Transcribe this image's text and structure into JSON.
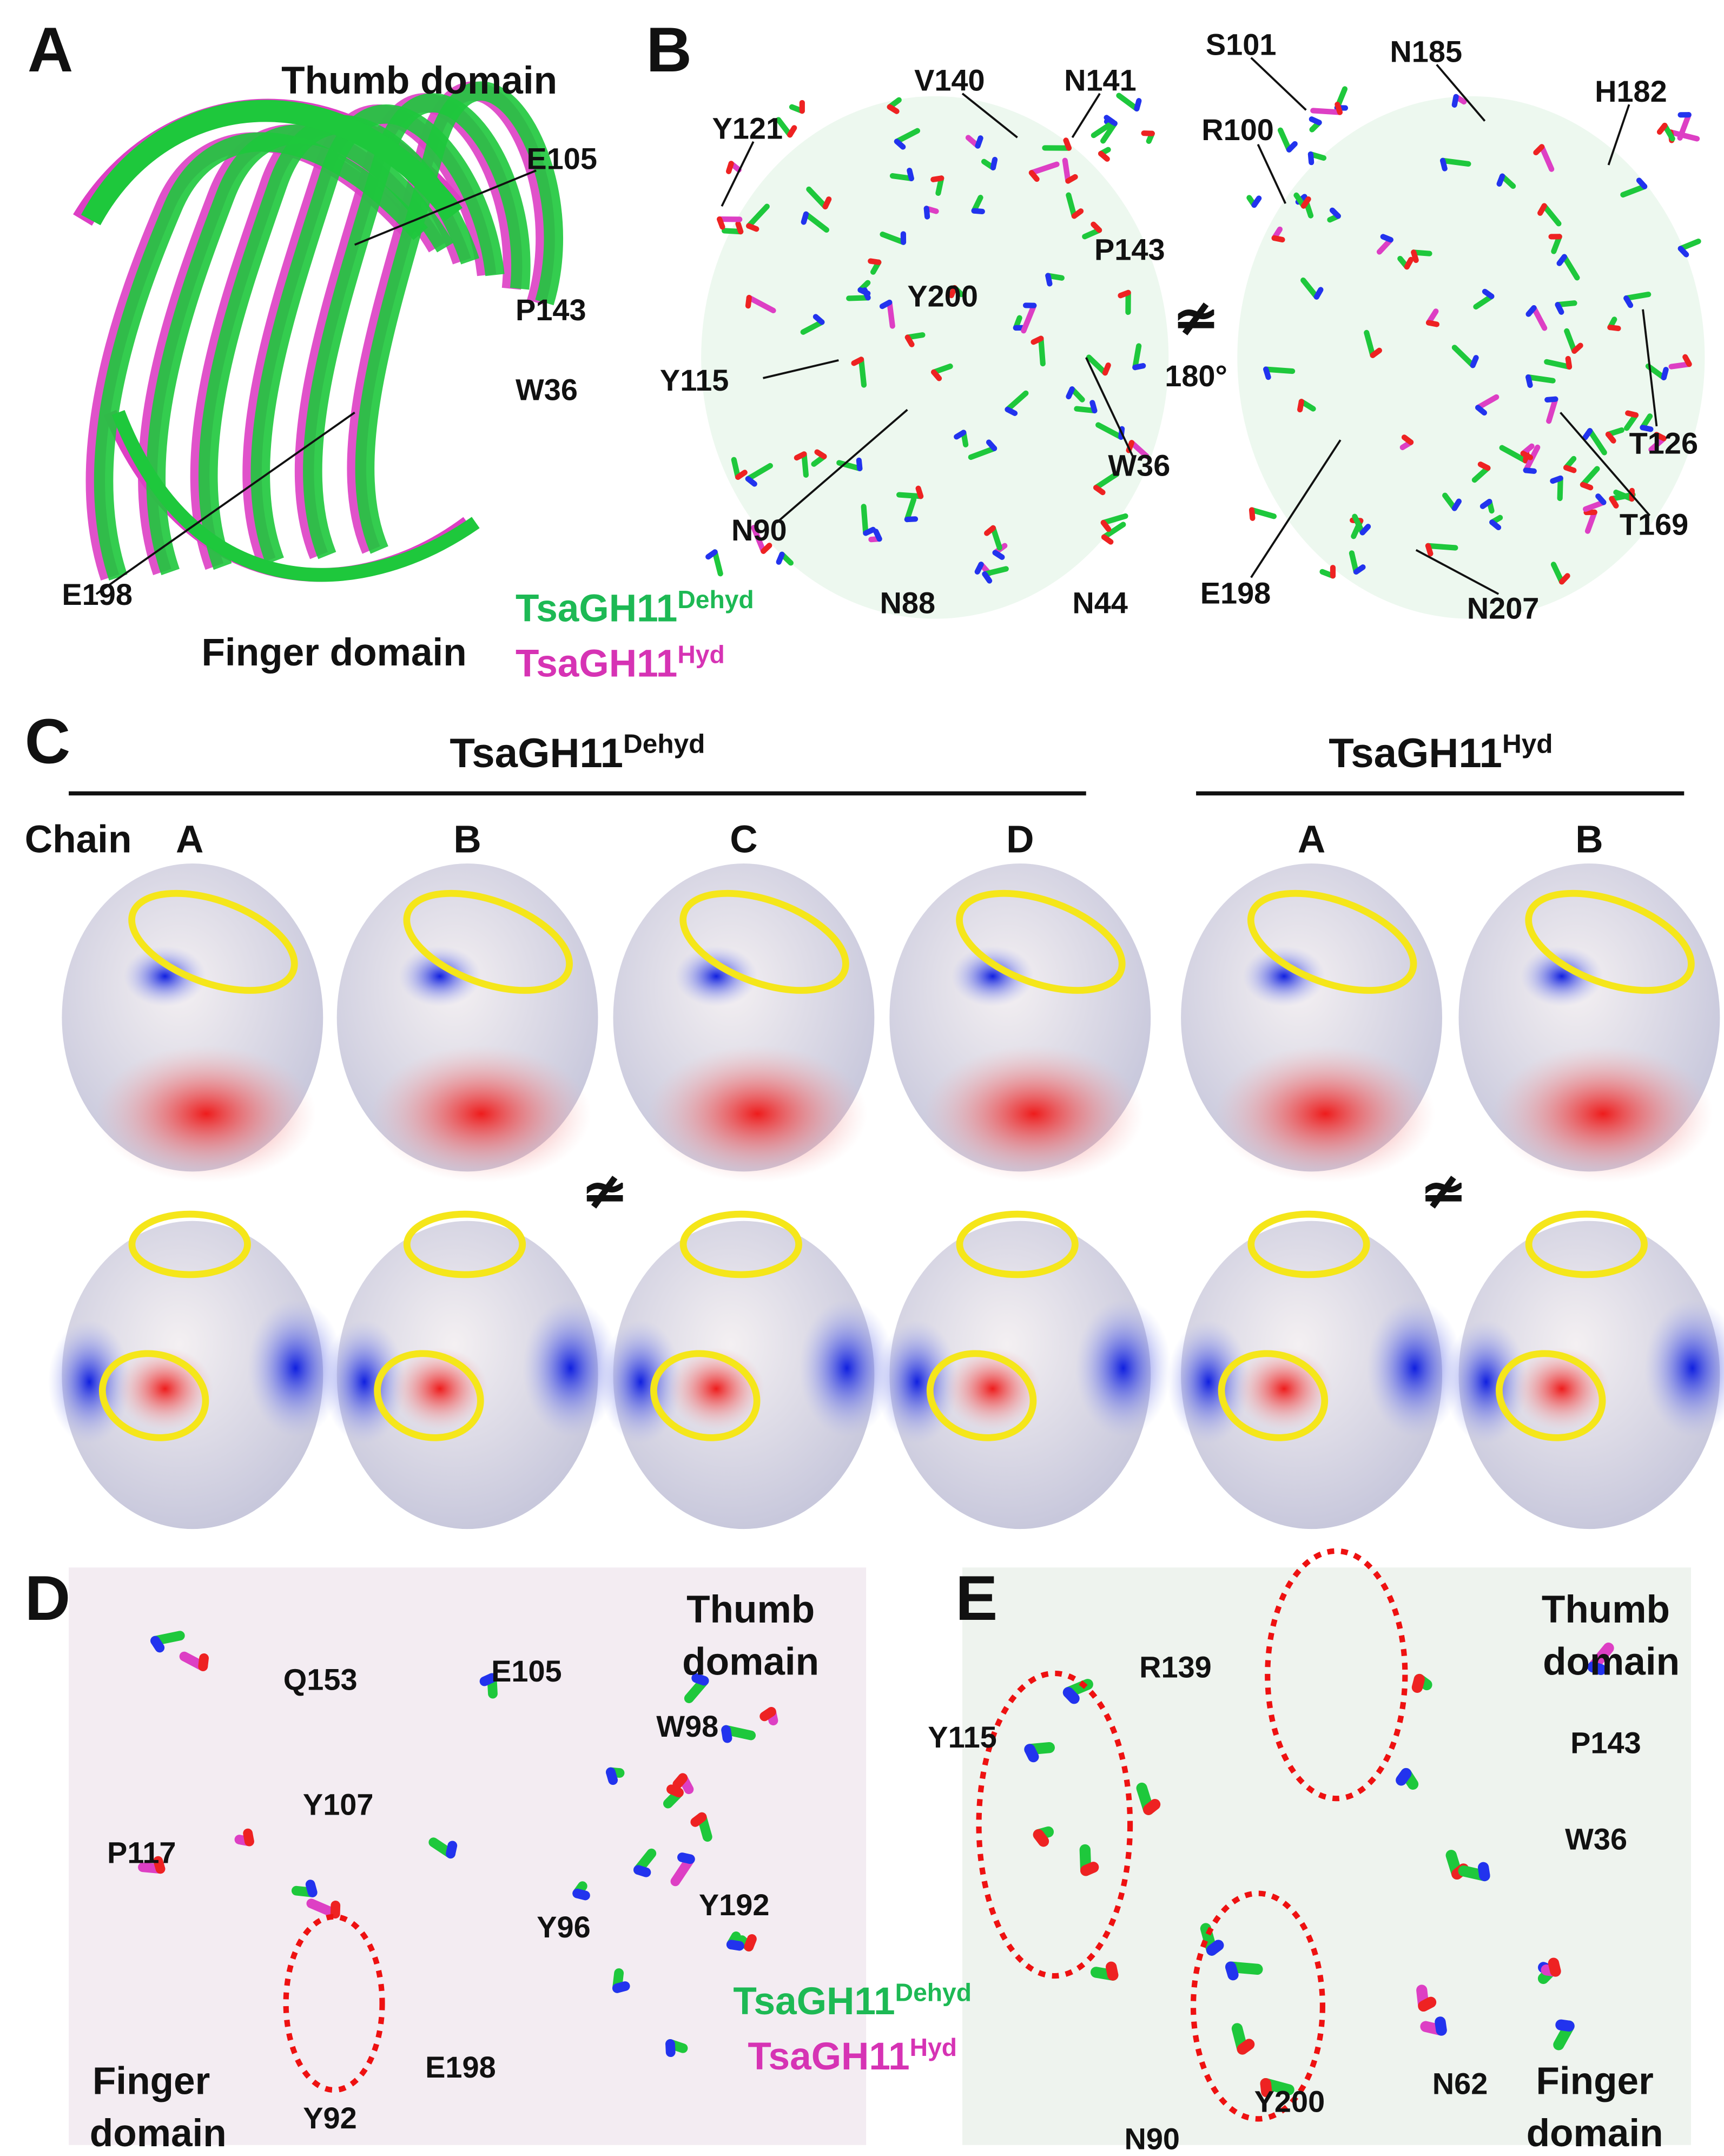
{
  "panels": {
    "A": {
      "label": "A",
      "thumb": "Thumb domain",
      "finger": "Finger domain",
      "residues": [
        "E105",
        "P143",
        "W36",
        "E198"
      ]
    },
    "B": {
      "label": "B",
      "residues_left": [
        "Y121",
        "V140",
        "N141",
        "P143",
        "Y200",
        "Y115",
        "W36",
        "N90",
        "N88",
        "N44"
      ],
      "rotation": "180°",
      "residues_right": [
        "S101",
        "N185",
        "H182",
        "R100",
        "T126",
        "T169",
        "E198",
        "N207"
      ]
    },
    "C": {
      "label": "C",
      "group_dehyd": {
        "base": "TsaGH11",
        "sup": "Dehyd"
      },
      "group_hyd": {
        "base": "TsaGH11",
        "sup": "Hyd"
      },
      "chain_label": "Chain",
      "chains_dehyd": [
        "A",
        "B",
        "C",
        "D"
      ],
      "chains_hyd": [
        "A",
        "B"
      ]
    },
    "D": {
      "label": "D",
      "thumb": [
        "Thumb",
        "domain"
      ],
      "finger": [
        "Finger",
        "domain"
      ],
      "residues": [
        "Q153",
        "E105",
        "W98",
        "Y107",
        "P117",
        "Y192",
        "Y96",
        "Y92",
        "E198"
      ]
    },
    "E": {
      "label": "E",
      "thumb": [
        "Thumb",
        "domain"
      ],
      "finger": [
        "Finger",
        "domain"
      ],
      "residues": [
        "R139",
        "P143",
        "Y115",
        "W36",
        "N62",
        "Y200",
        "N90"
      ]
    }
  },
  "legend": [
    {
      "base": "TsaGH11",
      "sup": "Dehyd",
      "color": "#1db954"
    },
    {
      "base": "TsaGH11",
      "sup": "Hyd",
      "color": "#d633b4"
    }
  ]
}
